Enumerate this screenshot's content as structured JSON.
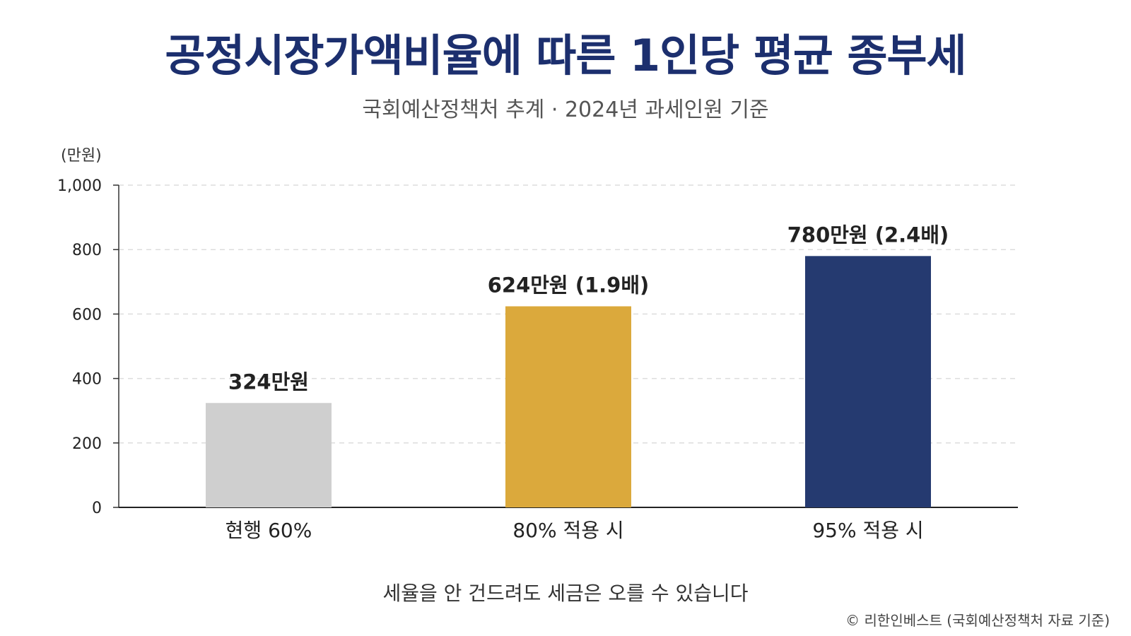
{
  "header": {
    "title": "공정시장가액비율에 따른 1인당 평균 종부세",
    "subtitle": "국회예산정책처 추계 · 2024년 과세인원 기준"
  },
  "footer": {
    "note": "세율을 안 건드려도 세금은 오를 수 있습니다",
    "credit": "© 리한인베스트 (국회예산정책처 자료 기준)"
  },
  "chart_data": {
    "type": "bar",
    "title": "공정시장가액비율에 따른 1인당 평균 종부세",
    "subtitle": "국회예산정책처 추계 · 2024년 과세인원 기준",
    "unit_label": "(만원)",
    "categories": [
      "현행 60%",
      "80% 적용 시",
      "95% 적용 시"
    ],
    "values": [
      324,
      624,
      780
    ],
    "data_labels": [
      "324만원",
      "624만원 (1.9배)",
      "780만원 (2.4배)"
    ],
    "colors": [
      "#cfcfcf",
      "#dba93c",
      "#253a70"
    ],
    "ylim": [
      0,
      1000
    ],
    "yticks": [
      0,
      200,
      400,
      600,
      800,
      1000
    ],
    "ytick_labels": [
      "0",
      "200",
      "400",
      "600",
      "800",
      "1,000"
    ],
    "grid": true,
    "legend": "none"
  }
}
